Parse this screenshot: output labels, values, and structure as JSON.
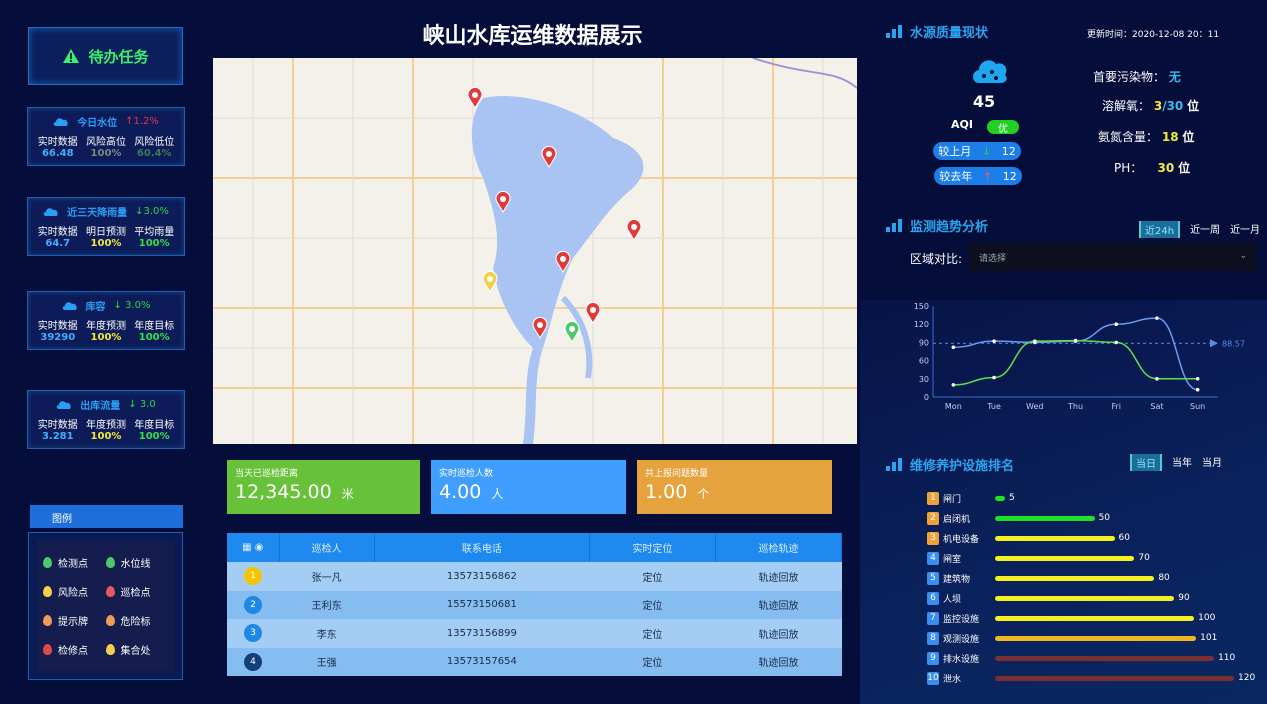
{
  "title": "峡山水库运维数据展示",
  "todo": {
    "label": "待办任务",
    "icon": "warning-icon"
  },
  "left_cards": [
    {
      "title": "今日水位",
      "change": "↑1.2%",
      "change_color": "#e8344a",
      "labels": [
        "实时数据",
        "风险高位",
        "风险低位"
      ],
      "values": [
        "66.48",
        "100%",
        "60.4%"
      ],
      "value_colors": [
        "#3fb0ff",
        "#7a8a7a",
        "#3d7a55"
      ]
    },
    {
      "title": "近三天降雨量",
      "change": "↓3.0%",
      "change_color": "#2bd44a",
      "labels": [
        "实时数据",
        "明日预测",
        "平均雨量"
      ],
      "values": [
        "64.7",
        "100%",
        "100%"
      ],
      "value_colors": [
        "#3fb0ff",
        "#f5e83a",
        "#2fe04a"
      ]
    },
    {
      "title": "库容",
      "change": "↓ 3.0%",
      "change_color": "#2bd44a",
      "labels": [
        "实时数据",
        "年度预测",
        "年度目标"
      ],
      "values": [
        "39290",
        "100%",
        "100%"
      ],
      "value_colors": [
        "#3fb0ff",
        "#f5e83a",
        "#2fe04a"
      ]
    },
    {
      "title": "出库流量",
      "change": "↓ 3.0",
      "change_color": "#2bd44a",
      "labels": [
        "实时数据",
        "年度预测",
        "年度目标"
      ],
      "values": [
        "3.281",
        "100%",
        "100%"
      ],
      "value_colors": [
        "#3fb0ff",
        "#f5e83a",
        "#2fe04a"
      ]
    }
  ],
  "legend": {
    "title": "图例",
    "items": [
      {
        "label": "检测点",
        "color": "#4cc96a"
      },
      {
        "label": "水位线",
        "color": "#4cc96a"
      },
      {
        "label": "风险点",
        "color": "#f3d04a"
      },
      {
        "label": "巡检点",
        "color": "#e85a5a"
      },
      {
        "label": "提示牌",
        "color": "#f09a5a"
      },
      {
        "label": "危险标",
        "color": "#f09a5a"
      },
      {
        "label": "检修点",
        "color": "#e04a4a"
      },
      {
        "label": "集合处",
        "color": "#f3d04a"
      }
    ]
  },
  "kpis": [
    {
      "label": "当天已巡检距离",
      "value": "12,345.00",
      "unit": "米",
      "color": "#67c23a"
    },
    {
      "label": "实时巡检人数",
      "value": "4.00",
      "unit": "人",
      "color": "#409eff"
    },
    {
      "label": "共上报问题数量",
      "value": "1.00",
      "unit": "个",
      "color": "#e6a23c"
    }
  ],
  "table": {
    "headers": [
      "巡检人",
      "联系电话",
      "实时定位",
      "巡检轨迹"
    ],
    "rows": [
      {
        "rank": "1",
        "name": "张一凡",
        "phone": "13573156862",
        "locate": "定位",
        "track": "轨迹回放",
        "badge": "#f5c400"
      },
      {
        "rank": "2",
        "name": "王利东",
        "phone": "15573150681",
        "locate": "定位",
        "track": "轨迹回放",
        "badge": "#1e88e5"
      },
      {
        "rank": "3",
        "name": "李东",
        "phone": "13573156899",
        "locate": "定位",
        "track": "轨迹回放",
        "badge": "#1e88e5"
      },
      {
        "rank": "4",
        "name": "王强",
        "phone": "13573157654",
        "locate": "定位",
        "track": "轨迹回放",
        "badge": "#123f7a"
      }
    ]
  },
  "quality": {
    "title": "水源质量现状",
    "update_label": "更新时间：",
    "update_time": "2020-12-08 20：11",
    "aqi": "45",
    "aqi_label": "AQI",
    "aqi_level": "优",
    "vs_month": {
      "label": "较上月",
      "arrow": "↓",
      "value": "12"
    },
    "vs_year": {
      "label": "较去年",
      "arrow": "↑",
      "value": "12"
    },
    "items": [
      {
        "label": "首要污染物：",
        "value": "无"
      },
      {
        "label": "溶解氧：",
        "value_a": "3",
        "value_b": "/30",
        "unit": "位"
      },
      {
        "label": "氨氮含量：",
        "value": "18",
        "unit": "位"
      },
      {
        "label": "PH：",
        "value": "30",
        "unit": "位"
      }
    ]
  },
  "trend": {
    "title": "监测趋势分析",
    "tabs": [
      "近24h",
      "近一周",
      "近一月"
    ],
    "active_tab": 0,
    "compare_label": "区域对比:",
    "select_placeholder": "请选择"
  },
  "chart_data": {
    "type": "line",
    "categories": [
      "Mon",
      "Tue",
      "Wed",
      "Thu",
      "Fri",
      "Sat",
      "Sun"
    ],
    "ylim": [
      0,
      150
    ],
    "yticks": [
      0,
      30,
      60,
      90,
      120,
      150
    ],
    "series": [
      {
        "values": [
          82,
          92,
          90,
          92,
          120,
          130,
          12
        ],
        "color": "#6a9cf0"
      },
      {
        "values": [
          20,
          32,
          92,
          93,
          90,
          30,
          30
        ],
        "color": "#5ee04a"
      }
    ],
    "markline": {
      "value": 88.57,
      "label": "88.57"
    }
  },
  "ranking": {
    "title": "维修养护设施排名",
    "tabs": [
      "当日",
      "当年",
      "当月"
    ],
    "active_tab": 0,
    "scale_max": 120,
    "items": [
      {
        "rank": "1",
        "name": "闸门",
        "value": 5,
        "color": "#22e022",
        "badge": "#f0a23a"
      },
      {
        "rank": "2",
        "name": "启闭机",
        "value": 50,
        "color": "#22e022",
        "badge": "#f0a23a"
      },
      {
        "rank": "3",
        "name": "机电设备",
        "value": 60,
        "color": "#f5f020",
        "badge": "#f0a23a"
      },
      {
        "rank": "4",
        "name": "闸室",
        "value": 70,
        "color": "#f5f020",
        "badge": "#3a8ef0"
      },
      {
        "rank": "5",
        "name": "建筑物",
        "value": 80,
        "color": "#f5f020",
        "badge": "#3a8ef0"
      },
      {
        "rank": "6",
        "name": "人坝",
        "value": 90,
        "color": "#f5f020",
        "badge": "#3a8ef0"
      },
      {
        "rank": "7",
        "name": "监控设施",
        "value": 100,
        "color": "#f5f020",
        "badge": "#3a8ef0"
      },
      {
        "rank": "8",
        "name": "观测设施",
        "value": 101,
        "color": "#f0b820",
        "badge": "#3a8ef0"
      },
      {
        "rank": "9",
        "name": "排水设施",
        "value": 110,
        "color": "#7a3030",
        "badge": "#3a8ef0"
      },
      {
        "rank": "10",
        "name": "泄水",
        "value": 120,
        "color": "#7a3030",
        "badge": "#3a8ef0"
      }
    ]
  }
}
